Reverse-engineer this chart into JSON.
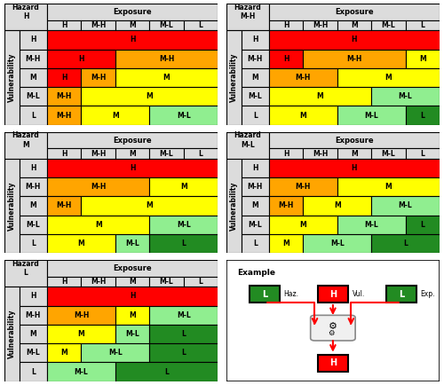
{
  "colors": {
    "H": "#FF0000",
    "M-H": "#FFA500",
    "M": "#FFFF00",
    "M-L": "#90EE90",
    "L": "#228B22",
    "header_bg": "#DCDCDC",
    "white": "#FFFFFF"
  },
  "tables": [
    {
      "hazard": "H",
      "rows": [
        [
          "H",
          "H",
          "H",
          "H",
          "H",
          "H"
        ],
        [
          "M-H",
          "H",
          "H",
          "M-H",
          "M-H",
          "M-H"
        ],
        [
          "M",
          "H",
          "M-H",
          "M",
          "M",
          "M"
        ],
        [
          "M-L",
          "M-H",
          "M",
          "M",
          "M",
          "M"
        ],
        [
          "L",
          "M-H",
          "M",
          "M",
          "M-L",
          "M-L"
        ]
      ]
    },
    {
      "hazard": "M-H",
      "rows": [
        [
          "H",
          "H",
          "H",
          "H",
          "H",
          "H"
        ],
        [
          "M-H",
          "H",
          "M-H",
          "M-H",
          "M-H",
          "M"
        ],
        [
          "M",
          "M-H",
          "M-H",
          "M",
          "M",
          "M"
        ],
        [
          "M-L",
          "M",
          "M",
          "M",
          "M-L",
          "M-L"
        ],
        [
          "L",
          "M",
          "M",
          "M-L",
          "M-L",
          "L"
        ]
      ]
    },
    {
      "hazard": "M",
      "rows": [
        [
          "H",
          "H",
          "H",
          "H",
          "H",
          "H"
        ],
        [
          "M-H",
          "M-H",
          "M-H",
          "M-H",
          "M",
          "M"
        ],
        [
          "M",
          "M-H",
          "M",
          "M",
          "M",
          "M"
        ],
        [
          "M-L",
          "M",
          "M",
          "M",
          "M-L",
          "M-L"
        ],
        [
          "L",
          "M",
          "M",
          "M-L",
          "L",
          "L"
        ]
      ]
    },
    {
      "hazard": "M-L",
      "rows": [
        [
          "H",
          "H",
          "H",
          "H",
          "H",
          "H"
        ],
        [
          "M-H",
          "M-H",
          "M-H",
          "M",
          "M",
          "M"
        ],
        [
          "M",
          "M-H",
          "M",
          "M",
          "M-L",
          "M-L"
        ],
        [
          "M-L",
          "M",
          "M",
          "M-L",
          "M-L",
          "L"
        ],
        [
          "L",
          "M",
          "M-L",
          "M-L",
          "L",
          "L"
        ]
      ]
    },
    {
      "hazard": "L",
      "rows": [
        [
          "H",
          "H",
          "H",
          "H",
          "H",
          "H"
        ],
        [
          "M-H",
          "M-H",
          "M-H",
          "M",
          "M-L",
          "M-L"
        ],
        [
          "M",
          "M",
          "M",
          "M-L",
          "L",
          "L"
        ],
        [
          "M-L",
          "M",
          "M-L",
          "M-L",
          "L",
          "L"
        ],
        [
          "L",
          "M-L",
          "M-L",
          "L",
          "L",
          "L"
        ]
      ]
    }
  ],
  "exposure_cols": [
    "H",
    "M-H",
    "M",
    "M-L",
    "L"
  ],
  "example": {
    "haz_label": "L",
    "haz_color": "#228B22",
    "vul_label": "H",
    "vul_color": "#FF0000",
    "exp_label": "L",
    "exp_color": "#228B22",
    "result_label": "H",
    "result_color": "#FF0000"
  }
}
